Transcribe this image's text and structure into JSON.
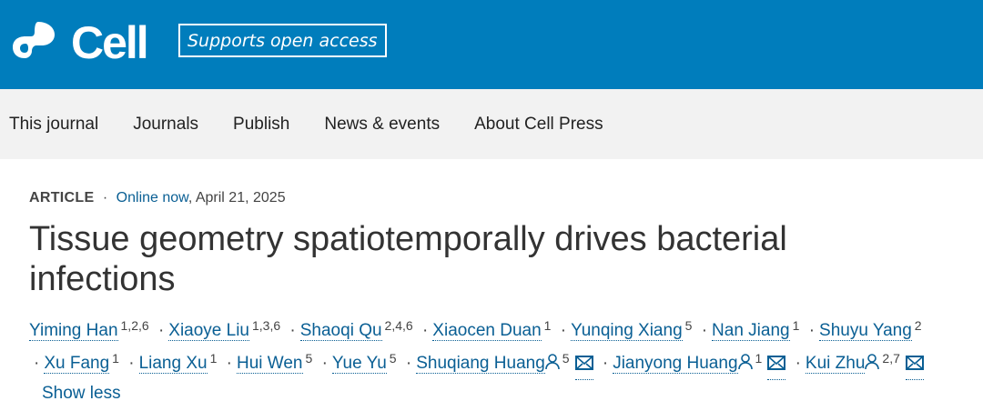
{
  "header": {
    "logo_text": "Cell",
    "badge": "Supports open access",
    "brand_color": "#007dbc"
  },
  "nav": [
    "This journal",
    "Journals",
    "Publish",
    "News & events",
    "About Cell Press"
  ],
  "article": {
    "type": "ARTICLE",
    "status": "Online now",
    "date": ", April 21, 2025",
    "title": "Tissue geometry spatiotemporally drives bacterial infections"
  },
  "authors": [
    {
      "name": "Yiming Han",
      "aff": "1,2,6"
    },
    {
      "name": "Xiaoye Liu",
      "aff": "1,3,6"
    },
    {
      "name": "Shaoqi Qu",
      "aff": "2,4,6"
    },
    {
      "name": "Xiaocen Duan",
      "aff": "1"
    },
    {
      "name": "Yunqing Xiang",
      "aff": "5"
    },
    {
      "name": "Nan Jiang",
      "aff": "1"
    },
    {
      "name": "Shuyu Yang",
      "aff": "2"
    },
    {
      "name": "Xu Fang",
      "aff": "1"
    },
    {
      "name": "Liang Xu",
      "aff": "1"
    },
    {
      "name": "Hui Wen",
      "aff": "5"
    },
    {
      "name": "Yue Yu",
      "aff": "5"
    },
    {
      "name": "Shuqiang Huang",
      "aff": "5",
      "corresponding": true
    },
    {
      "name": "Jianyong Huang",
      "aff": "1",
      "corresponding": true
    },
    {
      "name": "Kui Zhu",
      "aff": "2,7",
      "corresponding": true
    }
  ],
  "show_less": "Show less"
}
